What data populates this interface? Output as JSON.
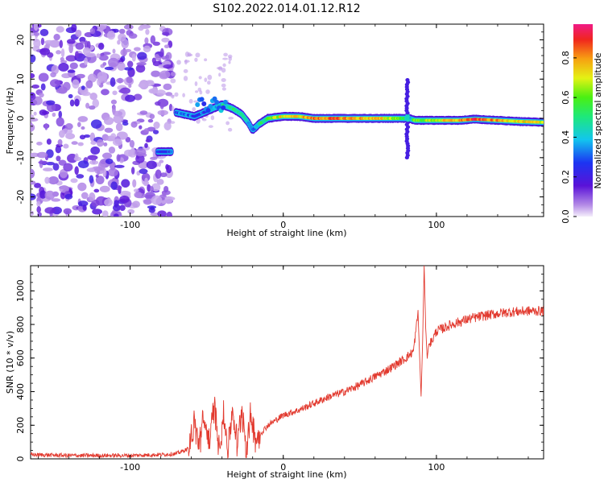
{
  "figure": {
    "title": "S102.2022.014.01.12.R12"
  },
  "colors": {
    "snr_line": "#e23a2f",
    "background": "#ffffff",
    "axes": "#000000"
  },
  "chart_data": [
    {
      "type": "heatmap",
      "name": "spectrogram",
      "xlabel": "Height of straight line (km)",
      "ylabel": "Frequency (Hz)",
      "xlim": [
        -165,
        170
      ],
      "ylim": [
        -25,
        24
      ],
      "x_ticks": [
        -100,
        0,
        100
      ],
      "x_tick_labels": [
        "-100",
        "0",
        "100"
      ],
      "y_ticks": [
        -20,
        -10,
        0,
        10,
        20
      ],
      "y_tick_labels": [
        "-20",
        "-10",
        "0",
        "10",
        "20"
      ],
      "colorbar": {
        "label": "Normalized spectral amplitude",
        "range": [
          0.0,
          0.97
        ],
        "ticks": [
          0.0,
          0.2,
          0.4,
          0.6,
          0.8
        ],
        "tick_labels": [
          "0.0",
          "0.2",
          "0.4",
          "0.6",
          "0.8"
        ],
        "colormap": "rainbow (purple-blue-cyan-green-yellow-red-magenta)"
      },
      "noise_region_x": [
        -165,
        -73
      ],
      "ridge": [
        {
          "x": -82,
          "f": -8.5,
          "amp": 0.25
        },
        {
          "x": -73,
          "f": -8.5,
          "amp": 0.3
        },
        {
          "x": -70,
          "f": 1.5,
          "amp": 0.3
        },
        {
          "x": -64,
          "f": 1.0,
          "amp": 0.35
        },
        {
          "x": -58,
          "f": 0.5,
          "amp": 0.3
        },
        {
          "x": -52,
          "f": 1.5,
          "amp": 0.3
        },
        {
          "x": -46,
          "f": 2.5,
          "amp": 0.4
        },
        {
          "x": -40,
          "f": 3.5,
          "amp": 0.45
        },
        {
          "x": -33,
          "f": 2.5,
          "amp": 0.5
        },
        {
          "x": -27,
          "f": 1.0,
          "amp": 0.45
        },
        {
          "x": -23,
          "f": -1.0,
          "amp": 0.4
        },
        {
          "x": -20,
          "f": -3.0,
          "amp": 0.35
        },
        {
          "x": -16,
          "f": -1.5,
          "amp": 0.45
        },
        {
          "x": -10,
          "f": 0.0,
          "amp": 0.6
        },
        {
          "x": 0,
          "f": 0.5,
          "amp": 0.75
        },
        {
          "x": 10,
          "f": 0.5,
          "amp": 0.75
        },
        {
          "x": 20,
          "f": 0.0,
          "amp": 0.85
        },
        {
          "x": 35,
          "f": 0.0,
          "amp": 0.85
        },
        {
          "x": 50,
          "f": 0.0,
          "amp": 0.8
        },
        {
          "x": 65,
          "f": 0.0,
          "amp": 0.75
        },
        {
          "x": 78,
          "f": 0.0,
          "amp": 0.6
        },
        {
          "x": 82,
          "f": 0.0,
          "amp": 0.35
        },
        {
          "x": 86,
          "f": -0.5,
          "amp": 0.6
        },
        {
          "x": 100,
          "f": -0.5,
          "amp": 0.7
        },
        {
          "x": 115,
          "f": -0.5,
          "amp": 0.8
        },
        {
          "x": 125,
          "f": -0.2,
          "amp": 0.9
        },
        {
          "x": 140,
          "f": -0.5,
          "amp": 0.8
        },
        {
          "x": 155,
          "f": -0.8,
          "amp": 0.75
        },
        {
          "x": 170,
          "f": -1.0,
          "amp": 0.7
        }
      ],
      "disturbance_spike": {
        "x": 81,
        "f_range": [
          -10,
          10
        ]
      }
    },
    {
      "type": "line",
      "name": "snr",
      "xlabel": "Height of straight line (km)",
      "ylabel": "SNR (10 * v/v)",
      "xlim": [
        -165,
        170
      ],
      "ylim": [
        0,
        1150
      ],
      "x_ticks": [
        -100,
        0,
        100
      ],
      "x_tick_labels": [
        "-100",
        "0",
        "100"
      ],
      "y_ticks": [
        0,
        200,
        400,
        600,
        800,
        1000
      ],
      "y_tick_labels": [
        "0",
        "200",
        "400",
        "600",
        "800",
        "1000"
      ],
      "series": [
        {
          "x": [
            -165,
            -140,
            -120,
            -100,
            -80,
            -70,
            -62,
            -58,
            -55,
            -52,
            -48,
            -45,
            -42,
            -39,
            -36,
            -33,
            -30,
            -27,
            -24,
            -21,
            -18,
            -15,
            -10,
            -5,
            0,
            10,
            20,
            30,
            40,
            50,
            60,
            70,
            80,
            85,
            88,
            90,
            91,
            92,
            93,
            94,
            95,
            97,
            100,
            110,
            120,
            130,
            140,
            150,
            160,
            170
          ],
          "y": [
            25,
            20,
            20,
            20,
            25,
            30,
            60,
            200,
            90,
            230,
            100,
            320,
            80,
            250,
            60,
            300,
            70,
            310,
            60,
            260,
            120,
            150,
            200,
            230,
            260,
            290,
            330,
            370,
            400,
            440,
            490,
            540,
            600,
            640,
            870,
            370,
            700,
            1150,
            780,
            600,
            680,
            700,
            760,
            800,
            830,
            850,
            865,
            875,
            880,
            880
          ]
        }
      ]
    }
  ]
}
